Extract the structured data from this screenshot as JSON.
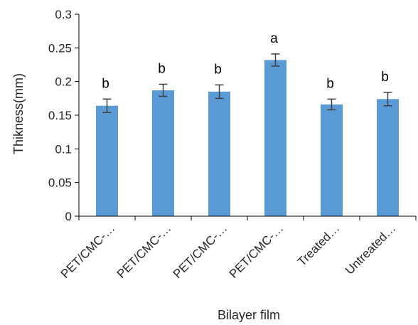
{
  "chart_data": {
    "type": "bar",
    "categories": [
      "PET/CMC-…",
      "PET/CMC-…",
      "PET/CMC-…",
      "PET/CMC-…",
      "Treated…",
      "Untreated…"
    ],
    "values": [
      0.164,
      0.187,
      0.185,
      0.232,
      0.166,
      0.174
    ],
    "errors": [
      0.01,
      0.009,
      0.01,
      0.009,
      0.008,
      0.01
    ],
    "significance_labels": [
      "b",
      "b",
      "b",
      "a",
      "b",
      "b"
    ],
    "xlabel": "Bilayer film",
    "ylabel": "Thikness(mm)",
    "ylim": [
      0,
      0.3
    ],
    "yticks": [
      "0",
      "0.05",
      "0.1",
      "0.15",
      "0.2",
      "0.25",
      "0.3"
    ],
    "grid": false,
    "legend": "none",
    "colors": {
      "bar": "#5b9bd5",
      "error_bar": "#404040",
      "axis": "#000000",
      "significance_faded": "#a6a6a6"
    }
  }
}
